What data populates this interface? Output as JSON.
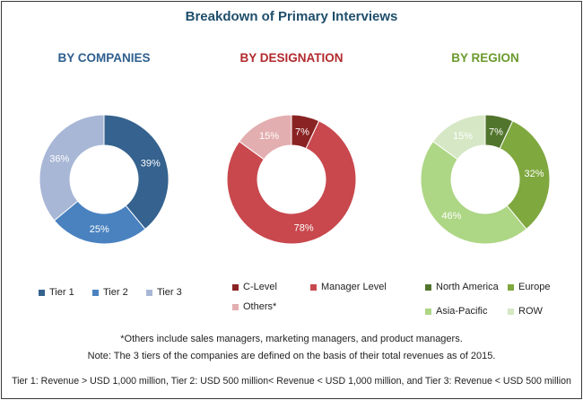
{
  "title": "Breakdown of Primary Interviews",
  "colors": {
    "title": "#1f4e6b",
    "companies_title": "#2e5f8f",
    "designation_title": "#b22a2e",
    "region_title": "#6a9a2d"
  },
  "chart_data": [
    {
      "type": "pie",
      "donut": true,
      "title": "BY COMPANIES",
      "slices": [
        {
          "label": "Tier 1",
          "value": 39,
          "color": "#35628f",
          "text_color": "#ffffff"
        },
        {
          "label": "Tier 2",
          "value": 25,
          "color": "#4a82c0",
          "text_color": "#ffffff"
        },
        {
          "label": "Tier 3",
          "value": 36,
          "color": "#a8b7d6",
          "text_color": "#ffffff"
        }
      ],
      "data_labels": [
        "39%",
        "25%",
        "36%"
      ],
      "legend": [
        "Tier 1",
        "Tier 2",
        "Tier 3"
      ]
    },
    {
      "type": "pie",
      "donut": true,
      "title": "BY DESIGNATION",
      "slices": [
        {
          "label": "C-Level",
          "value": 7,
          "color": "#8a2323",
          "text_color": "#ffffff"
        },
        {
          "label": "Manager Level",
          "value": 78,
          "color": "#c8484d",
          "text_color": "#ffffff"
        },
        {
          "label": "Others*",
          "value": 15,
          "color": "#e3aeb0",
          "text_color": "#ffffff"
        }
      ],
      "data_labels": [
        "7%",
        "78%",
        "15%"
      ],
      "legend": [
        "C-Level",
        "Manager Level",
        "Others*"
      ]
    },
    {
      "type": "pie",
      "donut": true,
      "title": "BY REGION",
      "slices": [
        {
          "label": "North America",
          "value": 7,
          "color": "#52752d",
          "text_color": "#ffffff"
        },
        {
          "label": "Europe",
          "value": 32,
          "color": "#7fa83f",
          "text_color": "#ffffff"
        },
        {
          "label": "Asia-Pacific",
          "value": 46,
          "color": "#add685",
          "text_color": "#ffffff"
        },
        {
          "label": "ROW",
          "value": 15,
          "color": "#d5e7c4",
          "text_color": "#ffffff"
        }
      ],
      "data_labels": [
        "7%",
        "32%",
        "46%",
        "15%"
      ],
      "legend": [
        "North America",
        "Europe",
        "Asia-Pacific",
        "ROW"
      ]
    }
  ],
  "footnotes": {
    "others": "*Others include sales managers, marketing managers, and product managers.",
    "tiers_note": "Note: The 3 tiers of the companies are defined on the basis of their total revenues as of 2015.",
    "tiers_definition": "Tier 1: Revenue > USD 1,000 million, Tier 2: USD 500 million< Revenue < USD 1,000 million, and Tier 3: Revenue < USD 500 million"
  }
}
